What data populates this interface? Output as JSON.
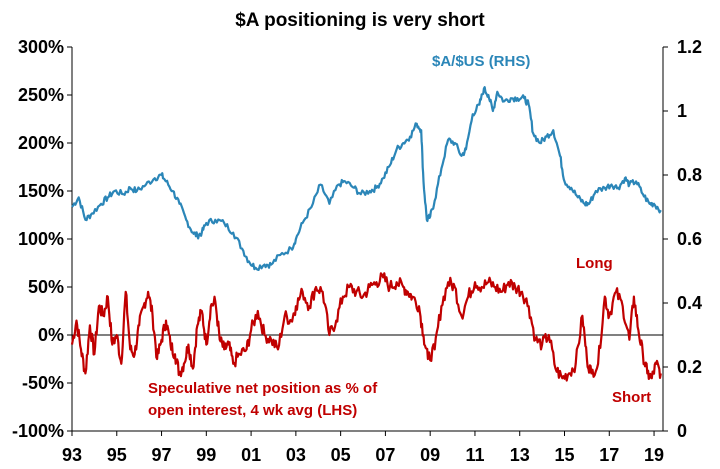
{
  "chart_data": {
    "type": "line",
    "title": "$A positioning is very short",
    "x_tick_labels": [
      "93",
      "95",
      "97",
      "99",
      "01",
      "03",
      "05",
      "07",
      "09",
      "11",
      "13",
      "15",
      "17",
      "19"
    ],
    "x_range": [
      1993,
      2019.4
    ],
    "y_left": {
      "range": [
        -100,
        300
      ],
      "tick_labels": [
        "-100%",
        "-50%",
        "0%",
        "50%",
        "100%",
        "150%",
        "200%",
        "250%",
        "300%"
      ]
    },
    "y_right": {
      "range": [
        0,
        1.2
      ],
      "tick_labels": [
        "0",
        "0.2",
        "0.4",
        "0.6",
        "0.8",
        "1",
        "1.2"
      ]
    },
    "grid": false,
    "annotations": {
      "long": "Long",
      "short": "Short",
      "spec_line1": "Speculative net position as % of",
      "spec_line2": "open interest, 4 wk avg (LHS)"
    },
    "series": [
      {
        "name": "$A/$US (RHS)",
        "axis": "right",
        "color": "#2b86b8",
        "points": [
          [
            1993.0,
            0.7
          ],
          [
            1993.3,
            0.73
          ],
          [
            1993.6,
            0.66
          ],
          [
            1993.9,
            0.68
          ],
          [
            1994.3,
            0.71
          ],
          [
            1994.6,
            0.73
          ],
          [
            1994.9,
            0.75
          ],
          [
            1995.3,
            0.74
          ],
          [
            1995.6,
            0.76
          ],
          [
            1995.9,
            0.75
          ],
          [
            1996.3,
            0.77
          ],
          [
            1996.7,
            0.79
          ],
          [
            1997.0,
            0.8
          ],
          [
            1997.2,
            0.78
          ],
          [
            1997.5,
            0.75
          ],
          [
            1997.8,
            0.71
          ],
          [
            1998.1,
            0.66
          ],
          [
            1998.4,
            0.62
          ],
          [
            1998.6,
            0.61
          ],
          [
            1998.8,
            0.62
          ],
          [
            1999.0,
            0.65
          ],
          [
            1999.4,
            0.66
          ],
          [
            1999.8,
            0.65
          ],
          [
            2000.2,
            0.62
          ],
          [
            2000.6,
            0.57
          ],
          [
            2000.9,
            0.53
          ],
          [
            2001.2,
            0.51
          ],
          [
            2001.6,
            0.52
          ],
          [
            2001.9,
            0.52
          ],
          [
            2002.3,
            0.55
          ],
          [
            2002.8,
            0.57
          ],
          [
            2003.0,
            0.6
          ],
          [
            2003.3,
            0.65
          ],
          [
            2003.7,
            0.7
          ],
          [
            2004.1,
            0.77
          ],
          [
            2004.5,
            0.71
          ],
          [
            2004.9,
            0.77
          ],
          [
            2005.2,
            0.78
          ],
          [
            2005.6,
            0.76
          ],
          [
            2005.9,
            0.74
          ],
          [
            2006.3,
            0.75
          ],
          [
            2006.6,
            0.76
          ],
          [
            2006.9,
            0.79
          ],
          [
            2007.2,
            0.83
          ],
          [
            2007.5,
            0.88
          ],
          [
            2007.8,
            0.9
          ],
          [
            2008.1,
            0.92
          ],
          [
            2008.4,
            0.96
          ],
          [
            2008.6,
            0.94
          ],
          [
            2008.7,
            0.78
          ],
          [
            2008.85,
            0.66
          ],
          [
            2009.0,
            0.67
          ],
          [
            2009.2,
            0.72
          ],
          [
            2009.5,
            0.82
          ],
          [
            2009.8,
            0.91
          ],
          [
            2010.1,
            0.9
          ],
          [
            2010.4,
            0.86
          ],
          [
            2010.6,
            0.88
          ],
          [
            2010.9,
            0.99
          ],
          [
            2011.2,
            1.02
          ],
          [
            2011.4,
            1.07
          ],
          [
            2011.6,
            1.05
          ],
          [
            2011.8,
            1.0
          ],
          [
            2012.0,
            1.06
          ],
          [
            2012.3,
            1.03
          ],
          [
            2012.6,
            1.04
          ],
          [
            2012.9,
            1.04
          ],
          [
            2013.2,
            1.04
          ],
          [
            2013.4,
            1.02
          ],
          [
            2013.6,
            0.93
          ],
          [
            2013.9,
            0.9
          ],
          [
            2014.2,
            0.92
          ],
          [
            2014.5,
            0.94
          ],
          [
            2014.8,
            0.86
          ],
          [
            2015.0,
            0.78
          ],
          [
            2015.3,
            0.76
          ],
          [
            2015.6,
            0.73
          ],
          [
            2015.9,
            0.71
          ],
          [
            2016.1,
            0.71
          ],
          [
            2016.4,
            0.75
          ],
          [
            2016.8,
            0.76
          ],
          [
            2017.1,
            0.77
          ],
          [
            2017.4,
            0.76
          ],
          [
            2017.7,
            0.79
          ],
          [
            2017.9,
            0.77
          ],
          [
            2018.2,
            0.78
          ],
          [
            2018.5,
            0.74
          ],
          [
            2018.8,
            0.71
          ],
          [
            2019.0,
            0.71
          ],
          [
            2019.3,
            0.69
          ]
        ]
      },
      {
        "name": "Speculative net position as % of open interest, 4 wk avg (LHS)",
        "axis": "left",
        "color": "#c00000",
        "points": [
          [
            1993.0,
            -10
          ],
          [
            1993.2,
            15
          ],
          [
            1993.4,
            -15
          ],
          [
            1993.6,
            -40
          ],
          [
            1993.8,
            10
          ],
          [
            1994.0,
            -20
          ],
          [
            1994.2,
            30
          ],
          [
            1994.4,
            20
          ],
          [
            1994.6,
            40
          ],
          [
            1994.8,
            -10
          ],
          [
            1995.0,
            0
          ],
          [
            1995.2,
            -30
          ],
          [
            1995.4,
            45
          ],
          [
            1995.6,
            -15
          ],
          [
            1995.8,
            -20
          ],
          [
            1996.0,
            10
          ],
          [
            1996.2,
            30
          ],
          [
            1996.4,
            45
          ],
          [
            1996.6,
            20
          ],
          [
            1996.8,
            -25
          ],
          [
            1997.0,
            -5
          ],
          [
            1997.2,
            15
          ],
          [
            1997.4,
            -10
          ],
          [
            1997.6,
            -20
          ],
          [
            1997.8,
            -40
          ],
          [
            1998.0,
            -30
          ],
          [
            1998.2,
            -10
          ],
          [
            1998.4,
            -35
          ],
          [
            1998.6,
            10
          ],
          [
            1998.8,
            25
          ],
          [
            1999.0,
            -10
          ],
          [
            1999.2,
            30
          ],
          [
            1999.4,
            35
          ],
          [
            1999.6,
            -5
          ],
          [
            1999.8,
            -15
          ],
          [
            2000.0,
            -10
          ],
          [
            2000.2,
            -30
          ],
          [
            2000.5,
            -20
          ],
          [
            2000.8,
            -15
          ],
          [
            2001.0,
            5
          ],
          [
            2001.3,
            25
          ],
          [
            2001.6,
            0
          ],
          [
            2001.9,
            -5
          ],
          [
            2002.2,
            -15
          ],
          [
            2002.5,
            20
          ],
          [
            2002.8,
            15
          ],
          [
            2003.0,
            30
          ],
          [
            2003.3,
            45
          ],
          [
            2003.6,
            30
          ],
          [
            2003.9,
            50
          ],
          [
            2004.2,
            45
          ],
          [
            2004.5,
            0
          ],
          [
            2004.8,
            15
          ],
          [
            2005.1,
            40
          ],
          [
            2005.4,
            50
          ],
          [
            2005.7,
            45
          ],
          [
            2006.0,
            40
          ],
          [
            2006.3,
            50
          ],
          [
            2006.6,
            55
          ],
          [
            2006.9,
            60
          ],
          [
            2007.2,
            50
          ],
          [
            2007.5,
            55
          ],
          [
            2007.8,
            50
          ],
          [
            2008.0,
            45
          ],
          [
            2008.2,
            40
          ],
          [
            2008.5,
            30
          ],
          [
            2008.7,
            0
          ],
          [
            2008.9,
            -25
          ],
          [
            2009.2,
            -15
          ],
          [
            2009.5,
            30
          ],
          [
            2009.8,
            55
          ],
          [
            2010.1,
            50
          ],
          [
            2010.4,
            20
          ],
          [
            2010.7,
            40
          ],
          [
            2011.0,
            55
          ],
          [
            2011.3,
            50
          ],
          [
            2011.6,
            55
          ],
          [
            2011.9,
            50
          ],
          [
            2012.2,
            45
          ],
          [
            2012.5,
            55
          ],
          [
            2012.8,
            50
          ],
          [
            2013.1,
            45
          ],
          [
            2013.4,
            30
          ],
          [
            2013.7,
            -5
          ],
          [
            2014.0,
            -10
          ],
          [
            2014.3,
            0
          ],
          [
            2014.6,
            -35
          ],
          [
            2014.9,
            -45
          ],
          [
            2015.2,
            -40
          ],
          [
            2015.5,
            -30
          ],
          [
            2015.8,
            20
          ],
          [
            2016.0,
            -25
          ],
          [
            2016.2,
            -40
          ],
          [
            2016.5,
            -30
          ],
          [
            2016.8,
            40
          ],
          [
            2017.0,
            20
          ],
          [
            2017.3,
            45
          ],
          [
            2017.6,
            30
          ],
          [
            2017.9,
            -5
          ],
          [
            2018.1,
            40
          ],
          [
            2018.3,
            5
          ],
          [
            2018.5,
            -20
          ],
          [
            2018.7,
            -40
          ],
          [
            2018.9,
            -45
          ],
          [
            2019.1,
            -30
          ],
          [
            2019.3,
            -40
          ]
        ]
      }
    ]
  }
}
